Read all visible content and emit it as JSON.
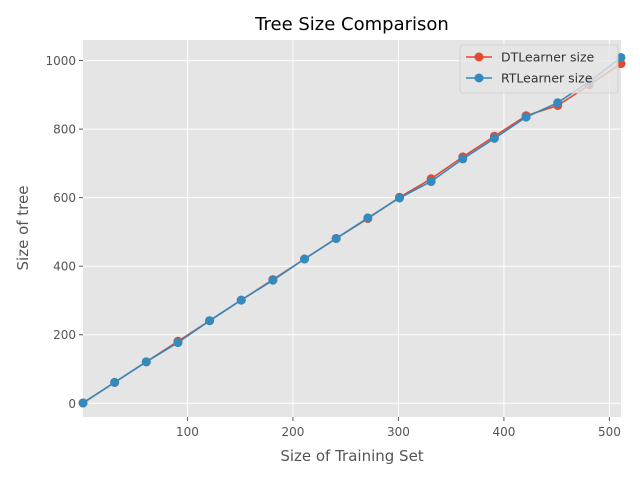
{
  "chart_data": {
    "type": "line",
    "title": "Tree Size Comparison",
    "xlabel": "Size of Training Set",
    "ylabel": "Size of tree",
    "xlim": [
      1,
      511
    ],
    "ylim": [
      -40,
      1060
    ],
    "xticks": [
      100,
      200,
      300,
      400,
      500
    ],
    "yticks": [
      0,
      200,
      400,
      600,
      800,
      1000
    ],
    "grid": true,
    "legend_position": "top-right",
    "x": [
      1,
      31,
      61,
      91,
      121,
      151,
      181,
      211,
      241,
      271,
      301,
      331,
      361,
      391,
      421,
      451,
      481,
      511
    ],
    "series": [
      {
        "name": "DTLearner size",
        "color": "#E24A33",
        "values": [
          1,
          61,
          121,
          181,
          241,
          301,
          361,
          421,
          481,
          539,
          601,
          655,
          719,
          779,
          839,
          869,
          929,
          991
        ]
      },
      {
        "name": "RTLearner size",
        "color": "#348ABD",
        "values": [
          1,
          61,
          121,
          177,
          241,
          301,
          359,
          421,
          481,
          541,
          599,
          647,
          713,
          773,
          835,
          877,
          939,
          1009
        ]
      }
    ]
  }
}
